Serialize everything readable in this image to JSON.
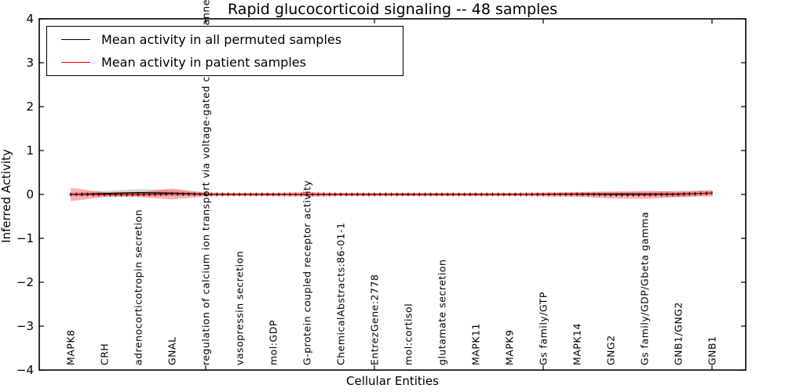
{
  "chart_data": {
    "type": "line",
    "title": "Rapid glucocorticoid signaling -- 48 samples",
    "xlabel": "Cellular Entities",
    "ylabel": "Inferred Activity",
    "ylim": [
      -4,
      4
    ],
    "yticks": [
      4,
      3,
      2,
      1,
      0,
      -1,
      -2,
      -3,
      -4
    ],
    "ytick_labels": [
      "4",
      "3",
      "2",
      "1",
      "0",
      "−1",
      "−2",
      "−3",
      "−4"
    ],
    "grid": false,
    "legend_position": "upper left",
    "marker": "+",
    "major_tick_indices": [
      4,
      9,
      14,
      19
    ],
    "categories": [
      "MAPK8",
      "CRH",
      "adrenocorticotropin secretion",
      "GNAL",
      "regulation of calcium ion transport via voltage-gated calcium channels",
      "vasopressin secretion",
      "mol:GDP",
      "G-protein coupled receptor activity",
      "ChemicalAbstracts:86-01-1",
      "EntrezGene:2778",
      "mol:cortisol",
      "glutamate secretion",
      "MAPK11",
      "MAPK9",
      "Gs family/GTP",
      "MAPK14",
      "GNG2",
      "Gs family/GDP/Gbeta gamma",
      "GNB1/GNG2",
      "GNB1"
    ],
    "series": [
      {
        "name": "Mean activity in all permuted samples",
        "color": "#000000",
        "band_color": "#000000",
        "band_opacity": 0.16,
        "values": [
          0,
          0.02,
          0.04,
          0.03,
          0.005,
          0,
          0,
          0,
          0,
          0,
          0,
          0,
          0,
          0,
          0.005,
          0.01,
          0.01,
          0.01,
          0.01,
          0.03
        ],
        "band_halfwidth": [
          0.045,
          0.06,
          0.08,
          0.07,
          0.027,
          0.018,
          0.018,
          0.018,
          0.018,
          0.018,
          0.018,
          0.018,
          0.018,
          0.018,
          0.025,
          0.03,
          0.04,
          0.05,
          0.07,
          0.05
        ]
      },
      {
        "name": "Mean activity in patient samples",
        "color": "#ff0000",
        "band_color": "#ff0000",
        "band_opacity": 0.3,
        "values": [
          0,
          -0.005,
          -0.005,
          0.01,
          0,
          0,
          0,
          0,
          0,
          0,
          0,
          0,
          0,
          0,
          0,
          0,
          -0.01,
          -0.01,
          0,
          0.03
        ],
        "band_halfwidth": [
          0.155,
          0.054,
          0.054,
          0.125,
          0.045,
          0.036,
          0.036,
          0.054,
          0.036,
          0.036,
          0.036,
          0.036,
          0.036,
          0.036,
          0.045,
          0.054,
          0.08,
          0.09,
          0.063,
          0.07
        ]
      }
    ]
  }
}
